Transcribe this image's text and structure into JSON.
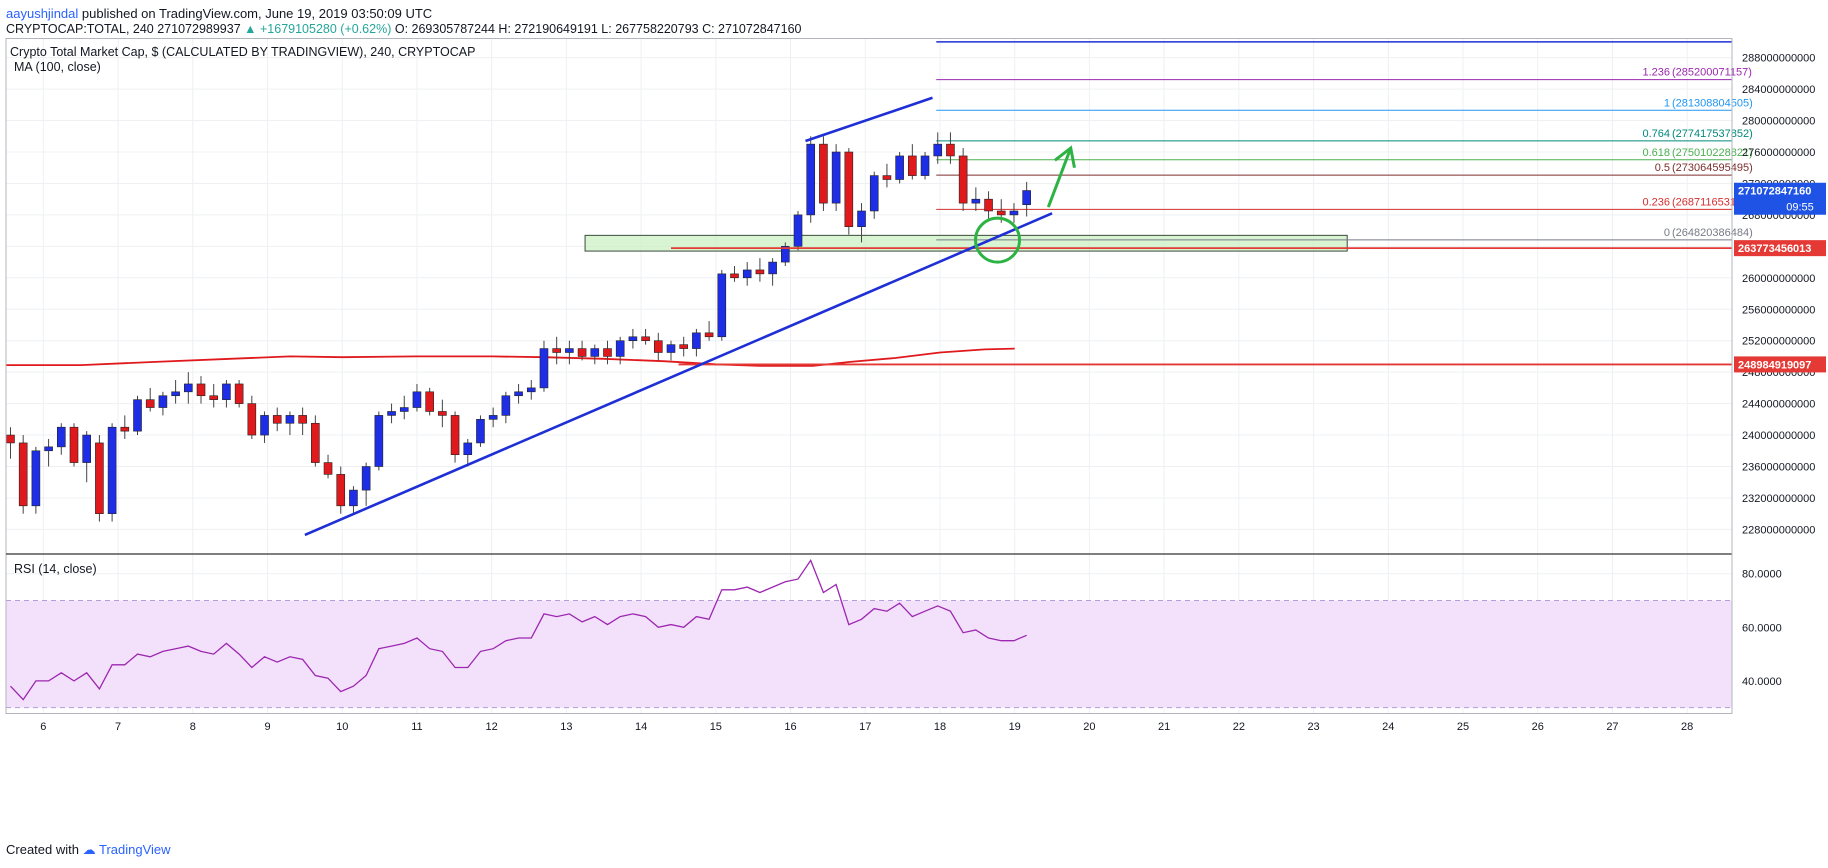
{
  "header": {
    "author": "aayushjindal",
    "published_text": "published on TradingView.com, June 19, 2019 03:50:09 UTC",
    "symbol": "CRYPTOCAP:TOTAL, 240",
    "price": "271072989937",
    "change": "▲ +1679105280 (+0.62%)",
    "ohlc": "O: 269305787244  H: 272190649191  L: 267758220793  C: 271072847160"
  },
  "footer": {
    "created_with": "Created with",
    "brand": "TradingView"
  },
  "chart_data": {
    "type": "candlestick",
    "title": "Crypto Total Market Cap, $ (CALCULATED BY TRADINGVIEW), 240, CRYPTOCAP",
    "indicator_label": "MA (100, close)",
    "rsi_label": "RSI (14, close)",
    "price_ylim": [
      225000000000,
      290500000000
    ],
    "price_ticks": [
      "288000000000",
      "284000000000",
      "280000000000",
      "276000000000",
      "272000000000",
      "268000000000",
      "264000000000",
      "260000000000",
      "256000000000",
      "252000000000",
      "248000000000",
      "244000000000",
      "240000000000",
      "236000000000",
      "232000000000",
      "228000000000"
    ],
    "rsi_ylim": [
      28,
      87
    ],
    "rsi_ticks": [
      "80.0000",
      "60.0000",
      "40.0000"
    ],
    "rsi_bands": [
      30,
      70
    ],
    "x_labels": [
      "6",
      "7",
      "8",
      "9",
      "10",
      "11",
      "12",
      "13",
      "14",
      "15",
      "16",
      "17",
      "18",
      "19",
      "20",
      "21",
      "22",
      "23",
      "24",
      "25",
      "26",
      "27",
      "28"
    ],
    "x_start_day": 5.5,
    "x_end_day": 28.6,
    "candles": [
      [
        5.56,
        240000000000,
        241000000000,
        237000000000,
        239000000000
      ],
      [
        5.73,
        239000000000,
        240000000000,
        230000000000,
        231000000000
      ],
      [
        5.9,
        231000000000,
        238500000000,
        230000000000,
        238000000000
      ],
      [
        6.07,
        238000000000,
        239500000000,
        236000000000,
        238500000000
      ],
      [
        6.24,
        238500000000,
        241500000000,
        237500000000,
        241000000000
      ],
      [
        6.41,
        241000000000,
        241500000000,
        236000000000,
        236500000000
      ],
      [
        6.58,
        236500000000,
        240500000000,
        234000000000,
        240000000000
      ],
      [
        6.75,
        239000000000,
        240000000000,
        229000000000,
        230000000000
      ],
      [
        6.92,
        230000000000,
        241500000000,
        229000000000,
        241000000000
      ],
      [
        7.09,
        241000000000,
        242500000000,
        239500000000,
        240500000000
      ],
      [
        7.26,
        240500000000,
        245000000000,
        240000000000,
        244500000000
      ],
      [
        7.43,
        244500000000,
        246000000000,
        243000000000,
        243500000000
      ],
      [
        7.6,
        243500000000,
        245500000000,
        242500000000,
        245000000000
      ],
      [
        7.77,
        245000000000,
        247000000000,
        244000000000,
        245500000000
      ],
      [
        7.94,
        245500000000,
        248000000000,
        244000000000,
        246500000000
      ],
      [
        8.11,
        246500000000,
        247500000000,
        244000000000,
        245000000000
      ],
      [
        8.28,
        245000000000,
        246500000000,
        243500000000,
        244500000000
      ],
      [
        8.45,
        244500000000,
        247000000000,
        243500000000,
        246500000000
      ],
      [
        8.62,
        246500000000,
        247000000000,
        243500000000,
        244000000000
      ],
      [
        8.79,
        244000000000,
        245000000000,
        239500000000,
        240000000000
      ],
      [
        8.96,
        240000000000,
        243000000000,
        239000000000,
        242500000000
      ],
      [
        9.13,
        242500000000,
        243500000000,
        240500000000,
        241500000000
      ],
      [
        9.3,
        241500000000,
        243000000000,
        240000000000,
        242500000000
      ],
      [
        9.47,
        242500000000,
        243500000000,
        240000000000,
        241500000000
      ],
      [
        9.64,
        241500000000,
        242500000000,
        236000000000,
        236500000000
      ],
      [
        9.81,
        236500000000,
        237500000000,
        234500000000,
        235000000000
      ],
      [
        9.98,
        235000000000,
        236000000000,
        230000000000,
        231000000000
      ],
      [
        10.15,
        231000000000,
        233500000000,
        230000000000,
        233000000000
      ],
      [
        10.32,
        233000000000,
        236500000000,
        231000000000,
        236000000000
      ],
      [
        10.49,
        236000000000,
        243000000000,
        235500000000,
        242500000000
      ],
      [
        10.66,
        242500000000,
        244000000000,
        241500000000,
        243000000000
      ],
      [
        10.83,
        243000000000,
        245000000000,
        242000000000,
        243500000000
      ],
      [
        11.0,
        243500000000,
        246500000000,
        243000000000,
        245500000000
      ],
      [
        11.17,
        245500000000,
        246000000000,
        242500000000,
        243000000000
      ],
      [
        11.34,
        243000000000,
        244500000000,
        241000000000,
        242500000000
      ],
      [
        11.51,
        242500000000,
        243000000000,
        236500000000,
        237500000000
      ],
      [
        11.68,
        237500000000,
        239500000000,
        236000000000,
        239000000000
      ],
      [
        11.85,
        239000000000,
        242500000000,
        238500000000,
        242000000000
      ],
      [
        12.02,
        242000000000,
        243500000000,
        241000000000,
        242500000000
      ],
      [
        12.19,
        242500000000,
        245500000000,
        241500000000,
        245000000000
      ],
      [
        12.36,
        245000000000,
        246500000000,
        244000000000,
        245500000000
      ],
      [
        12.53,
        245500000000,
        247000000000,
        244500000000,
        246000000000
      ],
      [
        12.7,
        246000000000,
        252000000000,
        245500000000,
        251000000000
      ],
      [
        12.87,
        251000000000,
        252500000000,
        249000000000,
        250500000000
      ],
      [
        13.04,
        250500000000,
        252000000000,
        249000000000,
        251000000000
      ],
      [
        13.21,
        251000000000,
        252000000000,
        249500000000,
        250000000000
      ],
      [
        13.38,
        250000000000,
        251500000000,
        249000000000,
        251000000000
      ],
      [
        13.55,
        251000000000,
        252000000000,
        249000000000,
        250000000000
      ],
      [
        13.72,
        250000000000,
        252500000000,
        249000000000,
        252000000000
      ],
      [
        13.89,
        252000000000,
        253500000000,
        251000000000,
        252500000000
      ],
      [
        14.06,
        252500000000,
        253500000000,
        251500000000,
        252000000000
      ],
      [
        14.23,
        252000000000,
        253000000000,
        249500000000,
        250500000000
      ],
      [
        14.4,
        250500000000,
        252000000000,
        249500000000,
        251500000000
      ],
      [
        14.57,
        251500000000,
        252500000000,
        250000000000,
        251000000000
      ],
      [
        14.74,
        251000000000,
        253500000000,
        250000000000,
        253000000000
      ],
      [
        14.91,
        253000000000,
        254500000000,
        252000000000,
        252500000000
      ],
      [
        15.08,
        252500000000,
        261000000000,
        252000000000,
        260500000000
      ],
      [
        15.25,
        260500000000,
        261500000000,
        259500000000,
        260000000000
      ],
      [
        15.42,
        260000000000,
        262000000000,
        259000000000,
        261000000000
      ],
      [
        15.59,
        261000000000,
        262500000000,
        259500000000,
        260500000000
      ],
      [
        15.76,
        260500000000,
        262500000000,
        259000000000,
        262000000000
      ],
      [
        15.93,
        262000000000,
        264500000000,
        261500000000,
        264000000000
      ],
      [
        16.1,
        264000000000,
        268500000000,
        263500000000,
        268000000000
      ],
      [
        16.27,
        268000000000,
        278000000000,
        267000000000,
        277000000000
      ],
      [
        16.44,
        277000000000,
        278000000000,
        268500000000,
        269500000000
      ],
      [
        16.61,
        269500000000,
        277000000000,
        268500000000,
        276000000000
      ],
      [
        16.78,
        276000000000,
        276500000000,
        265500000000,
        266500000000
      ],
      [
        16.95,
        266500000000,
        269500000000,
        264500000000,
        268500000000
      ],
      [
        17.12,
        268500000000,
        273500000000,
        267500000000,
        273000000000
      ],
      [
        17.29,
        273000000000,
        274500000000,
        271500000000,
        272500000000
      ],
      [
        17.46,
        272500000000,
        276000000000,
        272000000000,
        275500000000
      ],
      [
        17.63,
        275500000000,
        277000000000,
        272500000000,
        273000000000
      ],
      [
        17.8,
        273000000000,
        276000000000,
        272500000000,
        275500000000
      ],
      [
        17.97,
        275500000000,
        278500000000,
        274500000000,
        277000000000
      ],
      [
        18.14,
        277000000000,
        278500000000,
        274500000000,
        275500000000
      ],
      [
        18.31,
        275500000000,
        276500000000,
        268500000000,
        269500000000
      ],
      [
        18.48,
        269500000000,
        271500000000,
        268500000000,
        270000000000
      ],
      [
        18.65,
        270000000000,
        271000000000,
        267500000000,
        268500000000
      ],
      [
        18.82,
        268500000000,
        270000000000,
        267000000000,
        268000000000
      ],
      [
        18.99,
        268000000000,
        269500000000,
        267000000000,
        268500000000
      ],
      [
        19.16,
        269300000000,
        272200000000,
        267800000000,
        271100000000
      ]
    ],
    "moving_average": [
      [
        5.5,
        248900000000
      ],
      [
        6.5,
        248900000000
      ],
      [
        7.5,
        249300000000
      ],
      [
        8.5,
        249700000000
      ],
      [
        9.3,
        250000000000
      ],
      [
        10.0,
        249900000000
      ],
      [
        11.0,
        250000000000
      ],
      [
        12.0,
        250000000000
      ],
      [
        12.7,
        249900000000
      ],
      [
        13.5,
        249700000000
      ],
      [
        14.3,
        249400000000
      ],
      [
        15.0,
        249000000000
      ],
      [
        15.6,
        248800000000
      ],
      [
        16.3,
        248800000000
      ],
      [
        16.8,
        249300000000
      ],
      [
        17.4,
        249800000000
      ],
      [
        18.0,
        250500000000
      ],
      [
        18.6,
        250900000000
      ],
      [
        19.0,
        251000000000
      ]
    ],
    "rsi": [
      [
        5.56,
        38
      ],
      [
        5.73,
        33
      ],
      [
        5.9,
        40
      ],
      [
        6.07,
        40
      ],
      [
        6.24,
        43
      ],
      [
        6.41,
        40
      ],
      [
        6.58,
        43
      ],
      [
        6.75,
        37
      ],
      [
        6.92,
        46
      ],
      [
        7.09,
        46
      ],
      [
        7.26,
        50
      ],
      [
        7.43,
        49
      ],
      [
        7.6,
        51
      ],
      [
        7.77,
        52
      ],
      [
        7.94,
        53
      ],
      [
        8.11,
        51
      ],
      [
        8.28,
        50
      ],
      [
        8.45,
        54
      ],
      [
        8.62,
        50
      ],
      [
        8.79,
        45
      ],
      [
        8.96,
        49
      ],
      [
        9.13,
        47
      ],
      [
        9.3,
        49
      ],
      [
        9.47,
        48
      ],
      [
        9.64,
        42
      ],
      [
        9.81,
        41
      ],
      [
        9.98,
        36
      ],
      [
        10.15,
        38
      ],
      [
        10.32,
        42
      ],
      [
        10.49,
        52
      ],
      [
        10.66,
        53
      ],
      [
        10.83,
        54
      ],
      [
        11.0,
        56
      ],
      [
        11.17,
        52
      ],
      [
        11.34,
        51
      ],
      [
        11.51,
        45
      ],
      [
        11.68,
        45
      ],
      [
        11.85,
        51
      ],
      [
        12.02,
        52
      ],
      [
        12.19,
        55
      ],
      [
        12.36,
        56
      ],
      [
        12.53,
        56
      ],
      [
        12.7,
        65
      ],
      [
        12.87,
        64
      ],
      [
        13.04,
        65
      ],
      [
        13.21,
        62
      ],
      [
        13.38,
        64
      ],
      [
        13.55,
        61
      ],
      [
        13.72,
        64
      ],
      [
        13.89,
        65
      ],
      [
        14.06,
        64
      ],
      [
        14.23,
        60
      ],
      [
        14.4,
        61
      ],
      [
        14.57,
        60
      ],
      [
        14.74,
        64
      ],
      [
        14.91,
        63
      ],
      [
        15.08,
        74
      ],
      [
        15.25,
        74
      ],
      [
        15.42,
        75
      ],
      [
        15.59,
        73
      ],
      [
        15.76,
        75
      ],
      [
        15.93,
        77
      ],
      [
        16.1,
        78
      ],
      [
        16.27,
        85
      ],
      [
        16.44,
        73
      ],
      [
        16.61,
        76
      ],
      [
        16.78,
        61
      ],
      [
        16.95,
        63
      ],
      [
        17.12,
        67
      ],
      [
        17.29,
        66
      ],
      [
        17.46,
        69
      ],
      [
        17.63,
        64
      ],
      [
        17.8,
        66
      ],
      [
        17.97,
        68
      ],
      [
        18.14,
        66
      ],
      [
        18.31,
        58
      ],
      [
        18.48,
        59
      ],
      [
        18.65,
        56
      ],
      [
        18.82,
        55
      ],
      [
        18.99,
        55
      ],
      [
        19.16,
        57
      ]
    ],
    "fib_levels": [
      {
        "ratio": "1.236",
        "value": "285200071157",
        "price": 285200071157,
        "color": "#9c27b0"
      },
      {
        "ratio": "1",
        "value": "281308804505",
        "price": 281308804505,
        "color": "#2196f3"
      },
      {
        "ratio": "0.764",
        "value": "277417537852",
        "price": 277417537852,
        "color": "#00897b"
      },
      {
        "ratio": "0.618",
        "value": "275010228821",
        "price": 275010228821,
        "color": "#4caf50"
      },
      {
        "ratio": "0.5",
        "value": "273064595495",
        "price": 273064595495,
        "color": "#7d2e2e"
      },
      {
        "ratio": "0.236",
        "value": "268711653137",
        "price": 268711653137,
        "color": "#d32f2f"
      },
      {
        "ratio": "0",
        "value": "264820386484",
        "price": 264820386484,
        "color": "#787b86"
      }
    ],
    "fib_start_day": 17.95,
    "fib_top_price": 290000000000,
    "support_zone": {
      "from_day": 13.25,
      "to_day": 23.45,
      "low": 263400000000,
      "high": 265400000000
    },
    "horizontal_lines": [
      {
        "price": 263773456013,
        "from_day": 14.4,
        "label": "263773456013",
        "color": "#e53935"
      },
      {
        "price": 248984919097,
        "from_day": 14.5,
        "label": "248984919097",
        "color": "#e53935"
      }
    ],
    "last_price": {
      "label": "271072847160",
      "countdown": "09:55",
      "price": 271072847160,
      "color": "#1e53e5"
    },
    "trendlines": [
      {
        "from": [
          9.5,
          227300000000
        ],
        "to": [
          19.5,
          268200000000
        ],
        "color": "#1e2fd6"
      },
      {
        "from": [
          16.2,
          277400000000
        ],
        "to": [
          17.9,
          282900000000
        ],
        "color": "#1e2fd6"
      }
    ],
    "annotation_circle": {
      "day": 18.77,
      "price": 264800000000
    },
    "annotation_arrow": {
      "from": [
        19.45,
        269000000000
      ],
      "to": [
        19.75,
        276500000000
      ],
      "color": "#2db344"
    },
    "colors": {
      "up": "#1e2ee6",
      "down": "#e0191c",
      "ma": "#e0191c",
      "rsi": "#9c27b0",
      "rsi_fill": "#f3e1fb",
      "grid": "#eef0f3"
    }
  }
}
